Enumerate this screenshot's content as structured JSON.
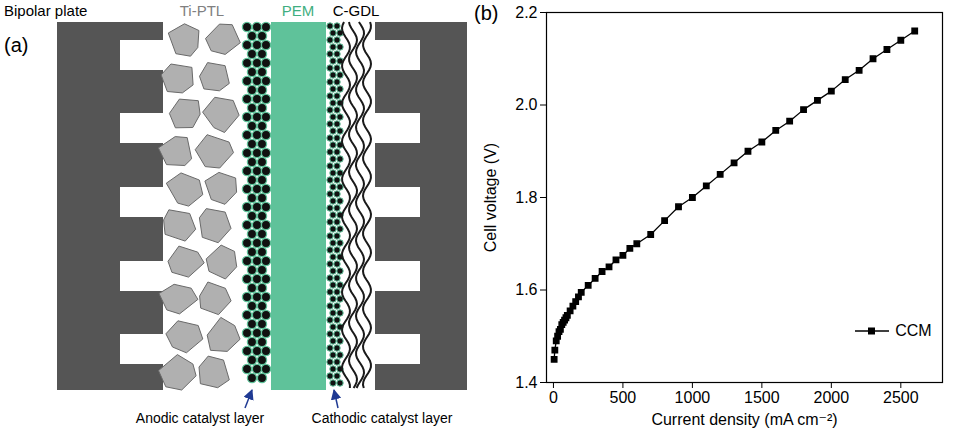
{
  "diagram": {
    "label": "(a)",
    "texts": {
      "bipolar_plate": "Bipolar plate",
      "ti_ptl": "Ti-PTL",
      "pem": "PEM",
      "c_gdl": "C-GDL",
      "anodic_layer": "Anodic catalyst layer",
      "cathodic_layer": "Cathodic catalyst layer"
    }
  },
  "chart_data": {
    "label": "(b)",
    "type": "line",
    "xlabel": "Current density (mA cm⁻²)",
    "ylabel": "Cell voltage (V)",
    "x": [
      5,
      10,
      20,
      30,
      40,
      50,
      60,
      70,
      80,
      90,
      100,
      120,
      140,
      160,
      180,
      200,
      250,
      300,
      350,
      400,
      450,
      500,
      550,
      600,
      700,
      800,
      900,
      1000,
      1100,
      1200,
      1300,
      1400,
      1500,
      1600,
      1700,
      1800,
      1900,
      2000,
      2100,
      2200,
      2300,
      2400,
      2500,
      2600
    ],
    "series": [
      {
        "name": "CCM",
        "color": "#000000",
        "marker": "square",
        "line_style": "solid",
        "values": [
          1.45,
          1.47,
          1.49,
          1.5,
          1.51,
          1.515,
          1.525,
          1.53,
          1.535,
          1.54,
          1.545,
          1.555,
          1.565,
          1.575,
          1.585,
          1.595,
          1.61,
          1.625,
          1.64,
          1.65,
          1.665,
          1.675,
          1.69,
          1.7,
          1.72,
          1.75,
          1.78,
          1.8,
          1.825,
          1.85,
          1.875,
          1.9,
          1.92,
          1.945,
          1.965,
          1.99,
          2.01,
          2.03,
          2.055,
          2.075,
          2.1,
          2.12,
          2.14,
          2.16
        ]
      }
    ],
    "xlim": [
      -50,
      2800
    ],
    "xticks": [
      0,
      500,
      1000,
      1500,
      2000,
      2500
    ],
    "ylim": [
      1.4,
      2.2
    ],
    "yticks": [
      1.4,
      1.6,
      1.8,
      {
        "value": 2,
        "label": "2.0"
      },
      2.2
    ],
    "legend": "lower right",
    "grid": false
  }
}
